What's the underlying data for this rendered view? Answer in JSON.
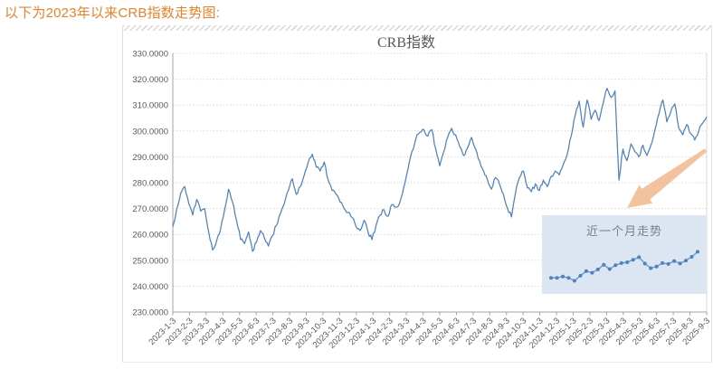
{
  "page": {
    "header": "以下为2023年以来CRB指数走势图:"
  },
  "chart_data": {
    "type": "line",
    "title": "CRB指数",
    "xlabel": "",
    "ylabel": "",
    "ylim": [
      230,
      330
    ],
    "grid": true,
    "legend": "none",
    "y_ticks": [
      "330.0000",
      "320.0000",
      "310.0000",
      "300.0000",
      "290.0000",
      "280.0000",
      "270.0000",
      "260.0000",
      "250.0000",
      "240.0000",
      "230.0000"
    ],
    "x_ticks": [
      "2023-1-3",
      "2023-2-3",
      "2023-3-3",
      "2023-4-3",
      "2023-5-3",
      "2023-6-3",
      "2023-7-3",
      "2023-8-3",
      "2023-9-3",
      "2023-10-3",
      "2023-11-3",
      "2023-12-3",
      "2024-1-3",
      "2024-2-3",
      "2024-3-3",
      "2024-4-3",
      "2024-5-3",
      "2024-6-3",
      "2024-7-3",
      "2024-8-3",
      "2024-9-3",
      "2024-10-3",
      "2024-11-3",
      "2024-12-3",
      "2025-1-3",
      "2025-2-3",
      "2025-3-3",
      "2025-4-3",
      "2025-5-3",
      "2025-6-3",
      "2025-7-3",
      "2025-8-3",
      "2025-9-3"
    ],
    "series": [
      {
        "name": "CRB指数",
        "sampling": "weekly-approx",
        "values": [
          263,
          270,
          276,
          278.5,
          272,
          267.5,
          273.5,
          269,
          270,
          261,
          254,
          257.5,
          262,
          269.5,
          277.5,
          272.5,
          265.5,
          258,
          256.5,
          261,
          253.5,
          257,
          261.5,
          258.5,
          255.5,
          259.5,
          263.5,
          268,
          272,
          277,
          281.5,
          275.5,
          278.5,
          283,
          288,
          291,
          286,
          284.5,
          288,
          281,
          277,
          275.5,
          272.5,
          270,
          268.5,
          266.5,
          263,
          261.5,
          265.5,
          261,
          258,
          263.5,
          267.5,
          269.5,
          267,
          271.5,
          270.5,
          272.5,
          278.5,
          285,
          292,
          297,
          299.5,
          300.5,
          298,
          300.5,
          293,
          286.5,
          292,
          297.5,
          301,
          298.5,
          294,
          290.5,
          293.5,
          297.5,
          293,
          288.5,
          284.5,
          281,
          277.5,
          282,
          279.5,
          275.5,
          270,
          266.8,
          276,
          282,
          284.5,
          278,
          276.5,
          279.5,
          277,
          281,
          278.5,
          282.5,
          284.5,
          283,
          287,
          291,
          298,
          306,
          311.5,
          301.5,
          312,
          304.5,
          308,
          304,
          310.5,
          316.5,
          313,
          315.5,
          281,
          293,
          288.5,
          295,
          292,
          290,
          294.5,
          290.5,
          294.5,
          300.5,
          306.5,
          312,
          303.5,
          307.5,
          310.5,
          301,
          298.5,
          302.5,
          299,
          296.5,
          300,
          303,
          305.5
        ]
      }
    ],
    "inset": {
      "title": "近一个月走势",
      "values": [
        297.6,
        297.6,
        297.9,
        297.6,
        296.9,
        298.1,
        299.2,
        298.8,
        299.6,
        300.7,
        299.7,
        300.6,
        301.1,
        301.3,
        301.9,
        302.5,
        301.0,
        299.9,
        300.3,
        301.1,
        300.9,
        301.6,
        301.0,
        301.7,
        302.6,
        303.8
      ]
    },
    "colors": {
      "line": "#4f81bd",
      "inset_line": "#699bc8",
      "grid": "#d9d9d9",
      "axis": "#a3a3a3",
      "text": "#595959",
      "header_text": "#e5832b",
      "inset_bg": "#dbe6f2",
      "inset_title": "#7f7f7f",
      "arrow": "#f2bd95"
    }
  }
}
